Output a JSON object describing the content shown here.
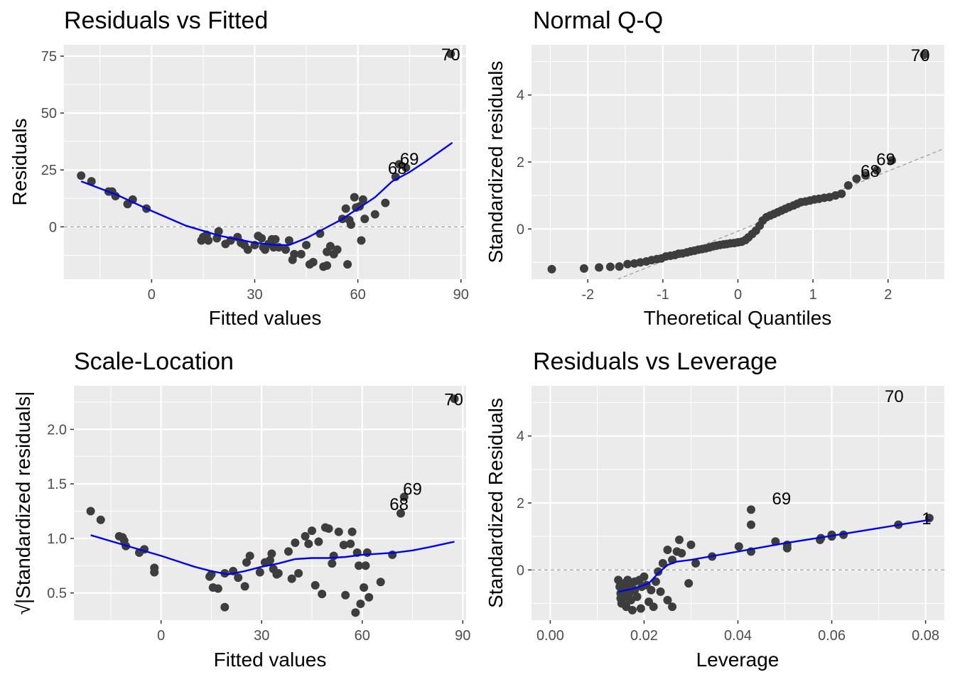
{
  "chart_data": [
    {
      "type": "scatter",
      "title": "Residuals vs Fitted",
      "xlabel": "Fitted values",
      "ylabel": "Residuals",
      "xlim": [
        -25.5,
        91.5
      ],
      "ylim": [
        -23,
        80
      ],
      "x_ticks": [
        0,
        30,
        60,
        90
      ],
      "y_ticks": [
        0,
        25,
        50,
        75
      ],
      "grid": true,
      "reference_line": 0,
      "points": [
        [
          -20.5,
          22.5
        ],
        [
          -17.5,
          20
        ],
        [
          -12.5,
          15.5
        ],
        [
          -11.5,
          15.5
        ],
        [
          -10.5,
          13.5
        ],
        [
          -7,
          10
        ],
        [
          -5.5,
          12
        ],
        [
          -1.5,
          8
        ],
        [
          14.5,
          -6
        ],
        [
          15,
          -4.5
        ],
        [
          16,
          -3.5
        ],
        [
          16.5,
          -6
        ],
        [
          19,
          -5
        ],
        [
          19.5,
          -2
        ],
        [
          21.5,
          -7.5
        ],
        [
          23,
          -6
        ],
        [
          25,
          -4.5
        ],
        [
          26,
          -7
        ],
        [
          27,
          -8
        ],
        [
          28,
          -10
        ],
        [
          30,
          -8
        ],
        [
          31,
          -4
        ],
        [
          32,
          -5
        ],
        [
          32.5,
          -9
        ],
        [
          33,
          -10
        ],
        [
          34,
          -7.5
        ],
        [
          35,
          -5.5
        ],
        [
          35.5,
          -9
        ],
        [
          36,
          -5.5
        ],
        [
          37,
          -9
        ],
        [
          39,
          -10
        ],
        [
          40,
          -6
        ],
        [
          41,
          -14.5
        ],
        [
          41.5,
          -12
        ],
        [
          43.5,
          -12
        ],
        [
          45,
          -8
        ],
        [
          46,
          -16.5
        ],
        [
          47,
          -15.5
        ],
        [
          49,
          -3
        ],
        [
          50,
          -17.5
        ],
        [
          51,
          -17
        ],
        [
          51,
          -11
        ],
        [
          52,
          -8.5
        ],
        [
          53,
          -12
        ],
        [
          54,
          -10
        ],
        [
          57,
          -16.5
        ],
        [
          55.5,
          3.5
        ],
        [
          56.5,
          8
        ],
        [
          57.5,
          3
        ],
        [
          58,
          1
        ],
        [
          59,
          13
        ],
        [
          59.5,
          8.5
        ],
        [
          60.5,
          9
        ],
        [
          61,
          -6
        ],
        [
          61.5,
          12
        ],
        [
          62,
          3.5
        ],
        [
          65,
          5.5
        ],
        [
          68,
          10.5
        ],
        [
          71,
          22
        ],
        [
          72,
          27.5
        ],
        [
          74,
          26
        ],
        [
          87,
          76
        ]
      ],
      "smooth": [
        [
          -20.5,
          20
        ],
        [
          -10,
          14
        ],
        [
          0,
          7
        ],
        [
          10,
          0.5
        ],
        [
          20,
          -4
        ],
        [
          30,
          -7
        ],
        [
          36,
          -8
        ],
        [
          40,
          -8
        ],
        [
          45,
          -5
        ],
        [
          50,
          -1
        ],
        [
          55,
          3
        ],
        [
          60,
          8
        ],
        [
          65,
          13
        ],
        [
          70,
          20
        ],
        [
          75,
          24
        ],
        [
          80,
          29
        ],
        [
          87.5,
          37
        ]
      ],
      "labels": [
        {
          "text": "70",
          "x": 87,
          "y": 76
        },
        {
          "text": "69",
          "x": 75,
          "y": 30
        },
        {
          "text": "68",
          "x": 71.5,
          "y": 26
        }
      ]
    },
    {
      "type": "scatter",
      "title": "Normal Q-Q",
      "xlabel": "Theoretical Quantiles",
      "ylabel": "Standardized residuals",
      "xlim": [
        -2.75,
        2.75
      ],
      "ylim": [
        -1.5,
        5.5
      ],
      "x_ticks": [
        -2,
        -1,
        0,
        1,
        2
      ],
      "y_ticks": [
        0,
        2,
        4
      ],
      "grid": true,
      "reference_line_points": [
        [
          -1.6,
          -1.5
        ],
        [
          2.75,
          2.4
        ]
      ],
      "points": [
        [
          -2.48,
          -1.2
        ],
        [
          -2.05,
          -1.18
        ],
        [
          -1.85,
          -1.15
        ],
        [
          -1.7,
          -1.13
        ],
        [
          -1.58,
          -1.12
        ],
        [
          -1.47,
          -1.05
        ],
        [
          -1.38,
          -1.03
        ],
        [
          -1.3,
          -1.0
        ],
        [
          -1.22,
          -0.97
        ],
        [
          -1.15,
          -0.93
        ],
        [
          -1.08,
          -0.9
        ],
        [
          -1.02,
          -0.88
        ],
        [
          -0.96,
          -0.82
        ],
        [
          -0.9,
          -0.8
        ],
        [
          -0.84,
          -0.78
        ],
        [
          -0.79,
          -0.74
        ],
        [
          -0.74,
          -0.73
        ],
        [
          -0.68,
          -0.7
        ],
        [
          -0.63,
          -0.67
        ],
        [
          -0.58,
          -0.65
        ],
        [
          -0.53,
          -0.62
        ],
        [
          -0.48,
          -0.6
        ],
        [
          -0.43,
          -0.58
        ],
        [
          -0.38,
          -0.55
        ],
        [
          -0.33,
          -0.52
        ],
        [
          -0.29,
          -0.5
        ],
        [
          -0.24,
          -0.48
        ],
        [
          -0.19,
          -0.46
        ],
        [
          -0.15,
          -0.45
        ],
        [
          -0.1,
          -0.43
        ],
        [
          -0.05,
          -0.42
        ],
        [
          0,
          -0.4
        ],
        [
          0.05,
          -0.38
        ],
        [
          0.1,
          -0.33
        ],
        [
          0.14,
          -0.25
        ],
        [
          0.19,
          -0.15
        ],
        [
          0.24,
          -0.05
        ],
        [
          0.29,
          0.1
        ],
        [
          0.33,
          0.25
        ],
        [
          0.38,
          0.35
        ],
        [
          0.43,
          0.4
        ],
        [
          0.48,
          0.45
        ],
        [
          0.53,
          0.5
        ],
        [
          0.58,
          0.55
        ],
        [
          0.63,
          0.6
        ],
        [
          0.68,
          0.65
        ],
        [
          0.74,
          0.7
        ],
        [
          0.79,
          0.75
        ],
        [
          0.84,
          0.8
        ],
        [
          0.9,
          0.82
        ],
        [
          0.96,
          0.85
        ],
        [
          1.02,
          0.88
        ],
        [
          1.08,
          0.9
        ],
        [
          1.15,
          0.93
        ],
        [
          1.22,
          0.95
        ],
        [
          1.3,
          1.0
        ],
        [
          1.38,
          1.05
        ],
        [
          1.47,
          1.3
        ],
        [
          1.58,
          1.5
        ],
        [
          1.7,
          1.6
        ],
        [
          1.85,
          1.75
        ],
        [
          2.05,
          2.05
        ],
        [
          2.48,
          5.2
        ]
      ],
      "labels": [
        {
          "text": "70",
          "x": 2.43,
          "y": 5.2
        },
        {
          "text": "69",
          "x": 1.97,
          "y": 2.1
        },
        {
          "text": "68",
          "x": 1.76,
          "y": 1.75
        }
      ]
    },
    {
      "type": "scatter",
      "title": "Scale-Location",
      "xlabel": "Fitted values",
      "ylabel": "√|Standardized residuals|",
      "xlim": [
        -26,
        91
      ],
      "ylim": [
        0.25,
        2.4
      ],
      "x_ticks": [
        0,
        30,
        60,
        90
      ],
      "y_ticks": [
        0.5,
        1.0,
        1.5,
        2.0
      ],
      "y_tick_labels": [
        "0.5",
        "1.0",
        "1.5",
        "2.0"
      ],
      "grid": true,
      "points": [
        [
          -21,
          1.25
        ],
        [
          -18,
          1.17
        ],
        [
          -12.5,
          1.02
        ],
        [
          -11.5,
          1.01
        ],
        [
          -11,
          0.98
        ],
        [
          -10.5,
          0.93
        ],
        [
          -6.5,
          0.87
        ],
        [
          -5,
          0.9
        ],
        [
          -2,
          0.73
        ],
        [
          -2,
          0.69
        ],
        [
          14.5,
          0.65
        ],
        [
          15,
          0.67
        ],
        [
          15.5,
          0.55
        ],
        [
          17,
          0.54
        ],
        [
          19,
          0.68
        ],
        [
          19,
          0.37
        ],
        [
          21.5,
          0.7
        ],
        [
          23,
          0.64
        ],
        [
          25,
          0.56
        ],
        [
          25.5,
          0.78
        ],
        [
          26.5,
          0.84
        ],
        [
          29.5,
          0.69
        ],
        [
          31,
          0.78
        ],
        [
          32.5,
          0.8
        ],
        [
          33.5,
          0.72
        ],
        [
          34.5,
          0.67
        ],
        [
          33,
          0.86
        ],
        [
          35,
          0.68
        ],
        [
          38,
          0.88
        ],
        [
          39,
          0.63
        ],
        [
          40,
          0.96
        ],
        [
          41,
          0.68
        ],
        [
          43,
          1.02
        ],
        [
          44,
          0.95
        ],
        [
          45,
          1.07
        ],
        [
          46,
          0.57
        ],
        [
          47,
          0.97
        ],
        [
          48,
          0.49
        ],
        [
          49,
          1.1
        ],
        [
          50,
          1.09
        ],
        [
          51,
          0.77
        ],
        [
          51.5,
          0.84
        ],
        [
          53,
          1.06
        ],
        [
          54.5,
          0.94
        ],
        [
          55,
          0.48
        ],
        [
          56.5,
          0.95
        ],
        [
          57,
          1.06
        ],
        [
          58,
          0.32
        ],
        [
          58.5,
          0.87
        ],
        [
          59,
          0.75
        ],
        [
          59.5,
          0.4
        ],
        [
          60.5,
          0.55
        ],
        [
          61,
          0.75
        ],
        [
          61.5,
          0.87
        ],
        [
          62,
          0.46
        ],
        [
          65.5,
          0.6
        ],
        [
          69,
          0.85
        ],
        [
          71.5,
          1.23
        ],
        [
          72.5,
          1.38
        ],
        [
          87.5,
          2.28
        ]
      ],
      "smooth": [
        [
          -21,
          1.03
        ],
        [
          -10,
          0.93
        ],
        [
          0,
          0.84
        ],
        [
          10,
          0.74
        ],
        [
          15,
          0.7
        ],
        [
          20,
          0.67
        ],
        [
          25,
          0.7
        ],
        [
          30,
          0.74
        ],
        [
          35,
          0.77
        ],
        [
          40,
          0.81
        ],
        [
          45,
          0.82
        ],
        [
          50,
          0.82
        ],
        [
          55,
          0.83
        ],
        [
          60,
          0.85
        ],
        [
          65,
          0.86
        ],
        [
          70,
          0.87
        ],
        [
          75,
          0.89
        ],
        [
          80,
          0.92
        ],
        [
          87.5,
          0.97
        ]
      ],
      "labels": [
        {
          "text": "70",
          "x": 87.3,
          "y": 2.28
        },
        {
          "text": "69",
          "x": 75,
          "y": 1.46
        },
        {
          "text": "68",
          "x": 71,
          "y": 1.32
        }
      ]
    },
    {
      "type": "scatter",
      "title": "Residuals vs Leverage",
      "xlabel": "Leverage",
      "ylabel": "Standardized Residuals",
      "xlim": [
        -0.004,
        0.084
      ],
      "ylim": [
        -1.5,
        5.5
      ],
      "x_ticks": [
        0.0,
        0.02,
        0.04,
        0.06,
        0.08
      ],
      "x_tick_labels": [
        "0.00",
        "0.02",
        "0.04",
        "0.06",
        "0.08"
      ],
      "y_ticks": [
        0,
        2,
        4
      ],
      "grid": true,
      "reference_line": 0,
      "points": [
        [
          0.0145,
          -0.3
        ],
        [
          0.0148,
          -0.5
        ],
        [
          0.015,
          -0.7
        ],
        [
          0.015,
          -0.85
        ],
        [
          0.0152,
          -1.0
        ],
        [
          0.0155,
          -0.6
        ],
        [
          0.0158,
          -0.4
        ],
        [
          0.016,
          -0.8
        ],
        [
          0.016,
          -1.05
        ],
        [
          0.0162,
          -1.1
        ],
        [
          0.0165,
          -0.3
        ],
        [
          0.0168,
          -0.7
        ],
        [
          0.017,
          -0.5
        ],
        [
          0.0172,
          -0.9
        ],
        [
          0.0175,
          -1.2
        ],
        [
          0.018,
          -0.35
        ],
        [
          0.018,
          -0.6
        ],
        [
          0.0185,
          -0.8
        ],
        [
          0.019,
          -0.3
        ],
        [
          0.0193,
          -1.15
        ],
        [
          0.0195,
          -0.5
        ],
        [
          0.02,
          -0.2
        ],
        [
          0.0205,
          -0.45
        ],
        [
          0.021,
          -0.95
        ],
        [
          0.0215,
          -0.6
        ],
        [
          0.022,
          -1.1
        ],
        [
          0.0225,
          -0.35
        ],
        [
          0.023,
          -0.05
        ],
        [
          0.0235,
          -0.65
        ],
        [
          0.024,
          0.2
        ],
        [
          0.025,
          0.6
        ],
        [
          0.025,
          -0.9
        ],
        [
          0.026,
          0.3
        ],
        [
          0.026,
          -1.1
        ],
        [
          0.027,
          0.55
        ],
        [
          0.0275,
          0.9
        ],
        [
          0.028,
          0.5
        ],
        [
          0.0295,
          -0.4
        ],
        [
          0.03,
          0.75
        ],
        [
          0.031,
          0.2
        ],
        [
          0.0345,
          0.4
        ],
        [
          0.0402,
          0.7
        ],
        [
          0.0428,
          0.55
        ],
        [
          0.0428,
          1.35
        ],
        [
          0.0428,
          1.8
        ],
        [
          0.048,
          0.85
        ],
        [
          0.0505,
          0.65
        ],
        [
          0.0505,
          0.75
        ],
        [
          0.0575,
          0.9
        ],
        [
          0.0577,
          0.95
        ],
        [
          0.06,
          1.0
        ],
        [
          0.06,
          1.05
        ],
        [
          0.0625,
          1.05
        ],
        [
          0.0742,
          1.35
        ],
        [
          0.0808,
          1.55
        ]
      ],
      "smooth": [
        [
          0.0145,
          -0.65
        ],
        [
          0.018,
          -0.55
        ],
        [
          0.021,
          -0.4
        ],
        [
          0.023,
          -0.1
        ],
        [
          0.025,
          0.15
        ],
        [
          0.027,
          0.25
        ],
        [
          0.03,
          0.3
        ],
        [
          0.04,
          0.55
        ],
        [
          0.05,
          0.8
        ],
        [
          0.06,
          1.02
        ],
        [
          0.07,
          1.25
        ],
        [
          0.081,
          1.5
        ]
      ],
      "labels": [
        {
          "text": "70",
          "x": 0.0733,
          "y": 5.2
        },
        {
          "text": "69",
          "x": 0.0493,
          "y": 2.15
        },
        {
          "text": "1",
          "x": 0.0802,
          "y": 1.55
        }
      ]
    }
  ]
}
